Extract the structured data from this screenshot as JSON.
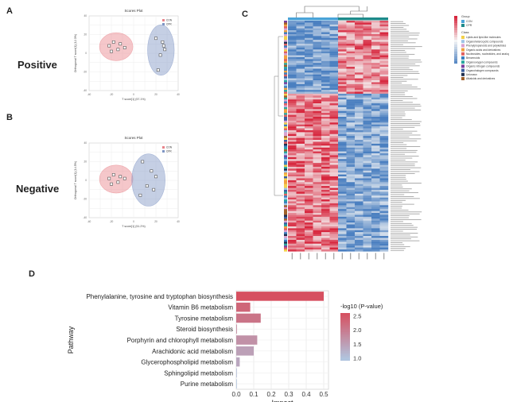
{
  "panels": {
    "a": {
      "letter": "A",
      "side_label": "Positive"
    },
    "b": {
      "letter": "B",
      "side_label": "Negative"
    },
    "c": {
      "letter": "C"
    },
    "d": {
      "letter": "D"
    }
  },
  "chart_data": [
    {
      "type": "scatter",
      "panel": "A",
      "title": "Scores Plot",
      "xlabel": "T score[1] (57.1%)",
      "ylabel": "Orthogonal T score[1] (12.3%)",
      "xlim": [
        -40,
        40
      ],
      "ylim": [
        -40,
        40
      ],
      "legend": [
        "CON",
        "CPR"
      ],
      "legend_position": "top-right",
      "series": [
        {
          "name": "CON",
          "color": "#e8838a",
          "points": [
            [
              -22,
              8
            ],
            [
              -18,
              12
            ],
            [
              -14,
              4
            ],
            [
              -12,
              10
            ],
            [
              -20,
              2
            ],
            [
              -8,
              6
            ]
          ]
        },
        {
          "name": "CPR",
          "color": "#7f95c4",
          "points": [
            [
              20,
              16
            ],
            [
              26,
              12
            ],
            [
              28,
              4
            ],
            [
              24,
              -2
            ],
            [
              27,
              8
            ],
            [
              22,
              -18
            ]
          ]
        }
      ]
    },
    {
      "type": "scatter",
      "panel": "B",
      "title": "Scores Plot",
      "xlabel": "T score[1] (51.2%)",
      "ylabel": "Orthogonal T score[1] (14.5%)",
      "xlim": [
        -40,
        40
      ],
      "ylim": [
        -40,
        40
      ],
      "legend": [
        "CON",
        "CPR"
      ],
      "legend_position": "top-right",
      "series": [
        {
          "name": "CON",
          "color": "#e8838a",
          "points": [
            [
              -22,
              2
            ],
            [
              -18,
              6
            ],
            [
              -14,
              -2
            ],
            [
              -12,
              4
            ],
            [
              -20,
              -4
            ],
            [
              -8,
              2
            ]
          ]
        },
        {
          "name": "CPR",
          "color": "#7f95c4",
          "points": [
            [
              8,
              20
            ],
            [
              16,
              10
            ],
            [
              20,
              4
            ],
            [
              12,
              -6
            ],
            [
              18,
              -10
            ],
            [
              6,
              -16
            ]
          ]
        }
      ]
    },
    {
      "type": "heatmap",
      "panel": "C",
      "n_columns": 12,
      "groups": [
        "CON",
        "CPR"
      ],
      "legend_group_title": "Group",
      "legend_class_title": "Class",
      "class_legend": [
        {
          "label": "Lipids and lipid-like molecules",
          "color": "#f2d04a"
        },
        {
          "label": "Organoheterocyclic compounds",
          "color": "#9ec3e6"
        },
        {
          "label": "Phenylpropanoids and polyketides",
          "color": "#d9a0d0"
        },
        {
          "label": "Organic acids and derivatives",
          "color": "#f0a040"
        },
        {
          "label": "Nucleosides, nucleotides, and analogues",
          "color": "#e06060"
        },
        {
          "label": "Benzenoids",
          "color": "#3a7fc0"
        },
        {
          "label": "Organooxygen compounds",
          "color": "#2aa8a0"
        },
        {
          "label": "Organic nitrogen compounds",
          "color": "#7a3fa0"
        },
        {
          "label": "Organohalogen compounds",
          "color": "#3a5fa0"
        },
        {
          "label": "Unknown",
          "color": "#203050"
        },
        {
          "label": "Alkaloids and derivatives",
          "color": "#a0602a"
        }
      ],
      "color_scale": {
        "low": "#4a7fc0",
        "mid": "#f5f5f5",
        "high": "#d7263d"
      }
    },
    {
      "type": "bar",
      "panel": "D",
      "orientation": "horizontal",
      "ylabel": "Pathway",
      "xlabel": "Impact",
      "xlim": [
        0,
        0.5
      ],
      "xticks": [
        "0.0",
        "0.1",
        "0.2",
        "0.3",
        "0.4",
        "0.5"
      ],
      "legend_title": "-log10 (P-value)",
      "legend_ticks": [
        "2.5",
        "2.0",
        "1.5",
        "1.0"
      ],
      "categories": [
        "Phenylalanine, tyrosine and tryptophan biosynthesis",
        "Vitamin B6 metabolism",
        "Tyrosine metabolism",
        "Steroid biosynthesis",
        "Porphyrin and chlorophyll metabolism",
        "Arachidonic acid metabolism",
        "Glycerophospholipid metabolism",
        "Sphingolipid metabolism",
        "Purine metabolism"
      ],
      "values": [
        0.5,
        0.08,
        0.14,
        0.004,
        0.12,
        0.1,
        0.02,
        0.003,
        0.002
      ],
      "neglog10_p": [
        2.6,
        2.3,
        2.1,
        1.8,
        1.7,
        1.5,
        1.4,
        1.1,
        1.0
      ]
    }
  ]
}
